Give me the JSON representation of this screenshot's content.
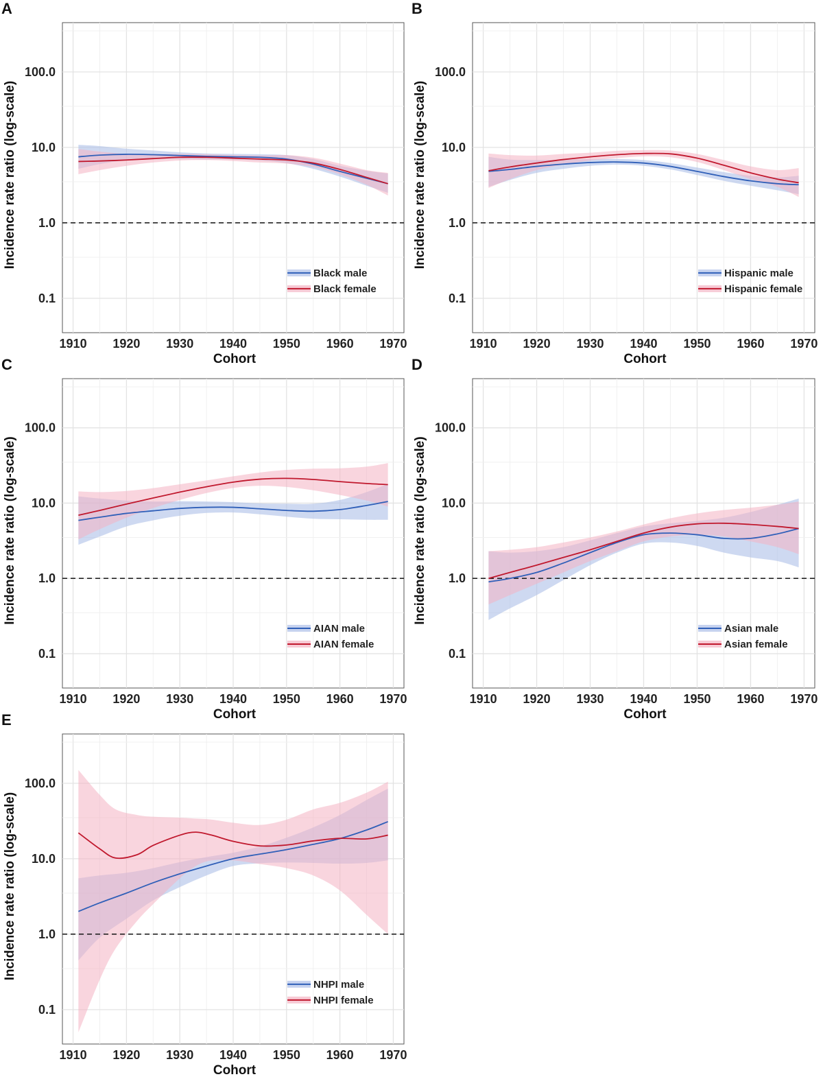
{
  "figure": {
    "colors": {
      "male": "#2f5fb8",
      "female": "#c0182d",
      "male_band": "#aebfe8",
      "female_band": "#f4b3c3"
    }
  },
  "chart_data": [
    {
      "panel": "A",
      "type": "line",
      "xlabel": "Cohort",
      "ylabel": "Incidence rate ratio (log-scale)",
      "xlim": [
        1908,
        1972
      ],
      "xticks": [
        1910,
        1920,
        1930,
        1940,
        1950,
        1960,
        1970
      ],
      "y_scale": "log",
      "ylim": [
        0.035,
        450
      ],
      "yticks": [
        "100.0",
        "10.0",
        "1.0",
        "0.1"
      ],
      "reference_line": 1.0,
      "grid": true,
      "legend_position": "bottom-right",
      "series": [
        {
          "name": "Black male",
          "group": "male",
          "x": [
            1911,
            1915,
            1920,
            1925,
            1930,
            1935,
            1940,
            1945,
            1950,
            1955,
            1960,
            1965,
            1969
          ],
          "y": [
            7.5,
            7.9,
            8.1,
            8.0,
            7.8,
            7.6,
            7.5,
            7.4,
            7.0,
            6.0,
            4.8,
            3.9,
            3.3
          ],
          "lower": [
            5.2,
            6.0,
            6.8,
            7.0,
            7.0,
            6.9,
            6.9,
            6.7,
            6.2,
            5.2,
            4.1,
            3.1,
            2.5
          ],
          "upper": [
            10.8,
            10.4,
            9.6,
            9.1,
            8.6,
            8.3,
            8.2,
            8.1,
            7.9,
            7.0,
            5.7,
            4.9,
            4.5
          ]
        },
        {
          "name": "Black female",
          "group": "female",
          "x": [
            1911,
            1915,
            1920,
            1925,
            1930,
            1935,
            1940,
            1945,
            1950,
            1955,
            1960,
            1965,
            1969
          ],
          "y": [
            6.5,
            6.6,
            6.8,
            7.1,
            7.4,
            7.4,
            7.2,
            7.0,
            6.8,
            6.2,
            5.1,
            4.0,
            3.3
          ],
          "lower": [
            4.4,
            5.0,
            5.7,
            6.3,
            6.7,
            6.8,
            6.6,
            6.3,
            6.1,
            5.5,
            4.4,
            3.2,
            2.3
          ],
          "upper": [
            9.5,
            8.8,
            8.2,
            8.1,
            8.2,
            8.1,
            7.9,
            7.8,
            7.9,
            7.3,
            6.1,
            5.0,
            4.6
          ]
        }
      ]
    },
    {
      "panel": "B",
      "type": "line",
      "xlabel": "Cohort",
      "ylabel": "Incidence rate ratio (log-scale)",
      "xlim": [
        1908,
        1972
      ],
      "xticks": [
        1910,
        1920,
        1930,
        1940,
        1950,
        1960,
        1970
      ],
      "y_scale": "log",
      "ylim": [
        0.035,
        450
      ],
      "yticks": [
        "100.0",
        "10.0",
        "1.0",
        "0.1"
      ],
      "reference_line": 1.0,
      "grid": true,
      "legend_position": "bottom-right",
      "series": [
        {
          "name": "Hispanic male",
          "group": "male",
          "x": [
            1911,
            1915,
            1920,
            1925,
            1930,
            1935,
            1940,
            1945,
            1950,
            1955,
            1960,
            1965,
            1969
          ],
          "y": [
            4.8,
            5.1,
            5.6,
            6.0,
            6.3,
            6.4,
            6.2,
            5.6,
            4.8,
            4.1,
            3.6,
            3.3,
            3.2
          ],
          "lower": [
            3.0,
            3.7,
            4.6,
            5.2,
            5.7,
            5.9,
            5.7,
            5.1,
            4.3,
            3.6,
            3.1,
            2.7,
            2.4
          ],
          "upper": [
            7.5,
            6.9,
            6.8,
            6.9,
            7.0,
            7.0,
            6.8,
            6.2,
            5.4,
            4.7,
            4.2,
            4.0,
            4.2
          ]
        },
        {
          "name": "Hispanic female",
          "group": "female",
          "x": [
            1911,
            1915,
            1920,
            1925,
            1930,
            1935,
            1940,
            1945,
            1950,
            1955,
            1960,
            1965,
            1969
          ],
          "y": [
            4.9,
            5.5,
            6.2,
            6.9,
            7.5,
            8.0,
            8.3,
            8.2,
            7.2,
            5.8,
            4.6,
            3.8,
            3.4
          ],
          "lower": [
            2.9,
            3.8,
            5.0,
            5.9,
            6.7,
            7.2,
            7.6,
            7.4,
            6.4,
            5.0,
            3.8,
            3.0,
            2.2
          ],
          "upper": [
            8.3,
            7.9,
            7.8,
            8.2,
            8.5,
            9.0,
            9.2,
            9.1,
            8.2,
            6.8,
            5.6,
            5.0,
            5.3
          ]
        }
      ]
    },
    {
      "panel": "C",
      "type": "line",
      "xlabel": "Cohort",
      "ylabel": "Incidence rate ratio (log-scale)",
      "xlim": [
        1908,
        1972
      ],
      "xticks": [
        1910,
        1920,
        1930,
        1940,
        1950,
        1960,
        1970
      ],
      "y_scale": "log",
      "ylim": [
        0.035,
        450
      ],
      "yticks": [
        "100.0",
        "10.0",
        "1.0",
        "0.1"
      ],
      "reference_line": 1.0,
      "grid": true,
      "legend_position": "bottom-right",
      "series": [
        {
          "name": "AIAN male",
          "group": "male",
          "x": [
            1911,
            1915,
            1920,
            1925,
            1930,
            1935,
            1940,
            1945,
            1950,
            1955,
            1960,
            1965,
            1969
          ],
          "y": [
            5.9,
            6.5,
            7.3,
            7.9,
            8.5,
            8.8,
            8.8,
            8.4,
            8.0,
            7.8,
            8.2,
            9.3,
            10.5
          ],
          "lower": [
            2.8,
            3.6,
            4.9,
            5.9,
            6.8,
            7.4,
            7.5,
            7.1,
            6.6,
            6.2,
            6.1,
            6.0,
            6.0
          ],
          "upper": [
            12.3,
            11.5,
            10.8,
            10.5,
            10.6,
            10.5,
            10.3,
            9.9,
            9.8,
            9.8,
            11.0,
            14.0,
            18.0
          ]
        },
        {
          "name": "AIAN female",
          "group": "female",
          "x": [
            1911,
            1915,
            1920,
            1925,
            1930,
            1935,
            1940,
            1945,
            1950,
            1955,
            1960,
            1965,
            1969
          ],
          "y": [
            6.9,
            8.0,
            9.7,
            11.7,
            14.0,
            16.5,
            19.0,
            20.8,
            21.3,
            20.6,
            19.3,
            18.2,
            17.6
          ],
          "lower": [
            3.3,
            4.5,
            6.4,
            8.6,
            11.0,
            13.6,
            15.9,
            17.0,
            16.4,
            14.8,
            12.8,
            10.8,
            9.0
          ],
          "upper": [
            14.3,
            14.0,
            14.5,
            15.8,
            17.8,
            20.0,
            22.7,
            25.5,
            27.6,
            28.7,
            29.0,
            30.5,
            34.0
          ]
        }
      ]
    },
    {
      "panel": "D",
      "type": "line",
      "xlabel": "Cohort",
      "ylabel": "Incidence rate ratio (log-scale)",
      "xlim": [
        1908,
        1972
      ],
      "xticks": [
        1910,
        1920,
        1930,
        1940,
        1950,
        1960,
        1970
      ],
      "y_scale": "log",
      "ylim": [
        0.035,
        450
      ],
      "yticks": [
        "100.0",
        "10.0",
        "1.0",
        "0.1"
      ],
      "reference_line": 1.0,
      "grid": true,
      "legend_position": "bottom-right",
      "series": [
        {
          "name": "Asian male",
          "group": "male",
          "x": [
            1911,
            1915,
            1920,
            1925,
            1930,
            1935,
            1940,
            1945,
            1950,
            1955,
            1960,
            1965,
            1969
          ],
          "y": [
            0.9,
            1.0,
            1.2,
            1.6,
            2.2,
            3.0,
            3.8,
            4.0,
            3.8,
            3.4,
            3.4,
            3.9,
            4.6
          ],
          "lower": [
            0.28,
            0.4,
            0.6,
            0.95,
            1.5,
            2.2,
            2.9,
            3.0,
            2.7,
            2.2,
            1.9,
            1.7,
            1.4
          ],
          "upper": [
            2.3,
            2.2,
            2.3,
            2.6,
            3.2,
            4.0,
            4.9,
            5.4,
            5.8,
            6.4,
            7.6,
            9.5,
            11.5
          ]
        },
        {
          "name": "Asian female",
          "group": "female",
          "x": [
            1911,
            1915,
            1920,
            1925,
            1930,
            1935,
            1940,
            1945,
            1950,
            1955,
            1960,
            1965,
            1969
          ],
          "y": [
            1.0,
            1.2,
            1.5,
            1.9,
            2.4,
            3.1,
            4.0,
            4.8,
            5.3,
            5.4,
            5.2,
            4.9,
            4.6
          ],
          "lower": [
            0.45,
            0.6,
            0.85,
            1.2,
            1.7,
            2.3,
            3.1,
            3.6,
            3.8,
            3.6,
            3.1,
            2.6,
            2.1
          ],
          "upper": [
            2.3,
            2.4,
            2.6,
            3.0,
            3.5,
            4.2,
            5.2,
            6.3,
            7.3,
            8.1,
            8.7,
            9.5,
            10.5
          ]
        }
      ]
    },
    {
      "panel": "E",
      "type": "line",
      "xlabel": "Cohort",
      "ylabel": "Incidence rate ratio (log-scale)",
      "xlim": [
        1908,
        1972
      ],
      "xticks": [
        1910,
        1920,
        1930,
        1940,
        1950,
        1960,
        1970
      ],
      "y_scale": "log",
      "ylim": [
        0.035,
        450
      ],
      "yticks": [
        "100.0",
        "10.0",
        "1.0",
        "0.1"
      ],
      "reference_line": 1.0,
      "grid": true,
      "legend_position": "bottom-right",
      "series": [
        {
          "name": "NHPI male",
          "group": "male",
          "x": [
            1911,
            1915,
            1920,
            1925,
            1930,
            1935,
            1940,
            1945,
            1950,
            1955,
            1960,
            1965,
            1969
          ],
          "y": [
            2.0,
            2.6,
            3.5,
            4.8,
            6.3,
            8.0,
            10.0,
            11.5,
            13.2,
            15.5,
            18.5,
            24.0,
            31.0
          ],
          "lower": [
            0.45,
            0.9,
            1.6,
            2.8,
            4.2,
            6.0,
            8.0,
            8.7,
            8.9,
            8.8,
            8.6,
            8.8,
            9.5
          ],
          "upper": [
            5.5,
            6.0,
            6.5,
            7.5,
            9.0,
            10.5,
            12.0,
            14.5,
            19.0,
            26.0,
            38.0,
            60.0,
            85.0
          ]
        },
        {
          "name": "NHPI female",
          "group": "female",
          "x": [
            1911,
            1915,
            1918,
            1922,
            1925,
            1930,
            1933,
            1936,
            1940,
            1945,
            1950,
            1955,
            1960,
            1965,
            1969
          ],
          "y": [
            22.0,
            13.5,
            10.2,
            11.3,
            15.0,
            20.5,
            22.5,
            20.5,
            17.0,
            14.8,
            15.2,
            17.2,
            18.6,
            18.3,
            20.5
          ],
          "lower": [
            0.05,
            0.25,
            0.65,
            1.5,
            2.5,
            5.5,
            8.0,
            9.5,
            9.5,
            8.5,
            7.5,
            6.0,
            3.8,
            1.8,
            1.0
          ],
          "upper": [
            150.0,
            70.0,
            45.0,
            38.0,
            36.0,
            35.0,
            34.0,
            33.0,
            30.0,
            28.0,
            33.0,
            45.0,
            55.0,
            75.0,
            105.0
          ]
        }
      ]
    }
  ]
}
